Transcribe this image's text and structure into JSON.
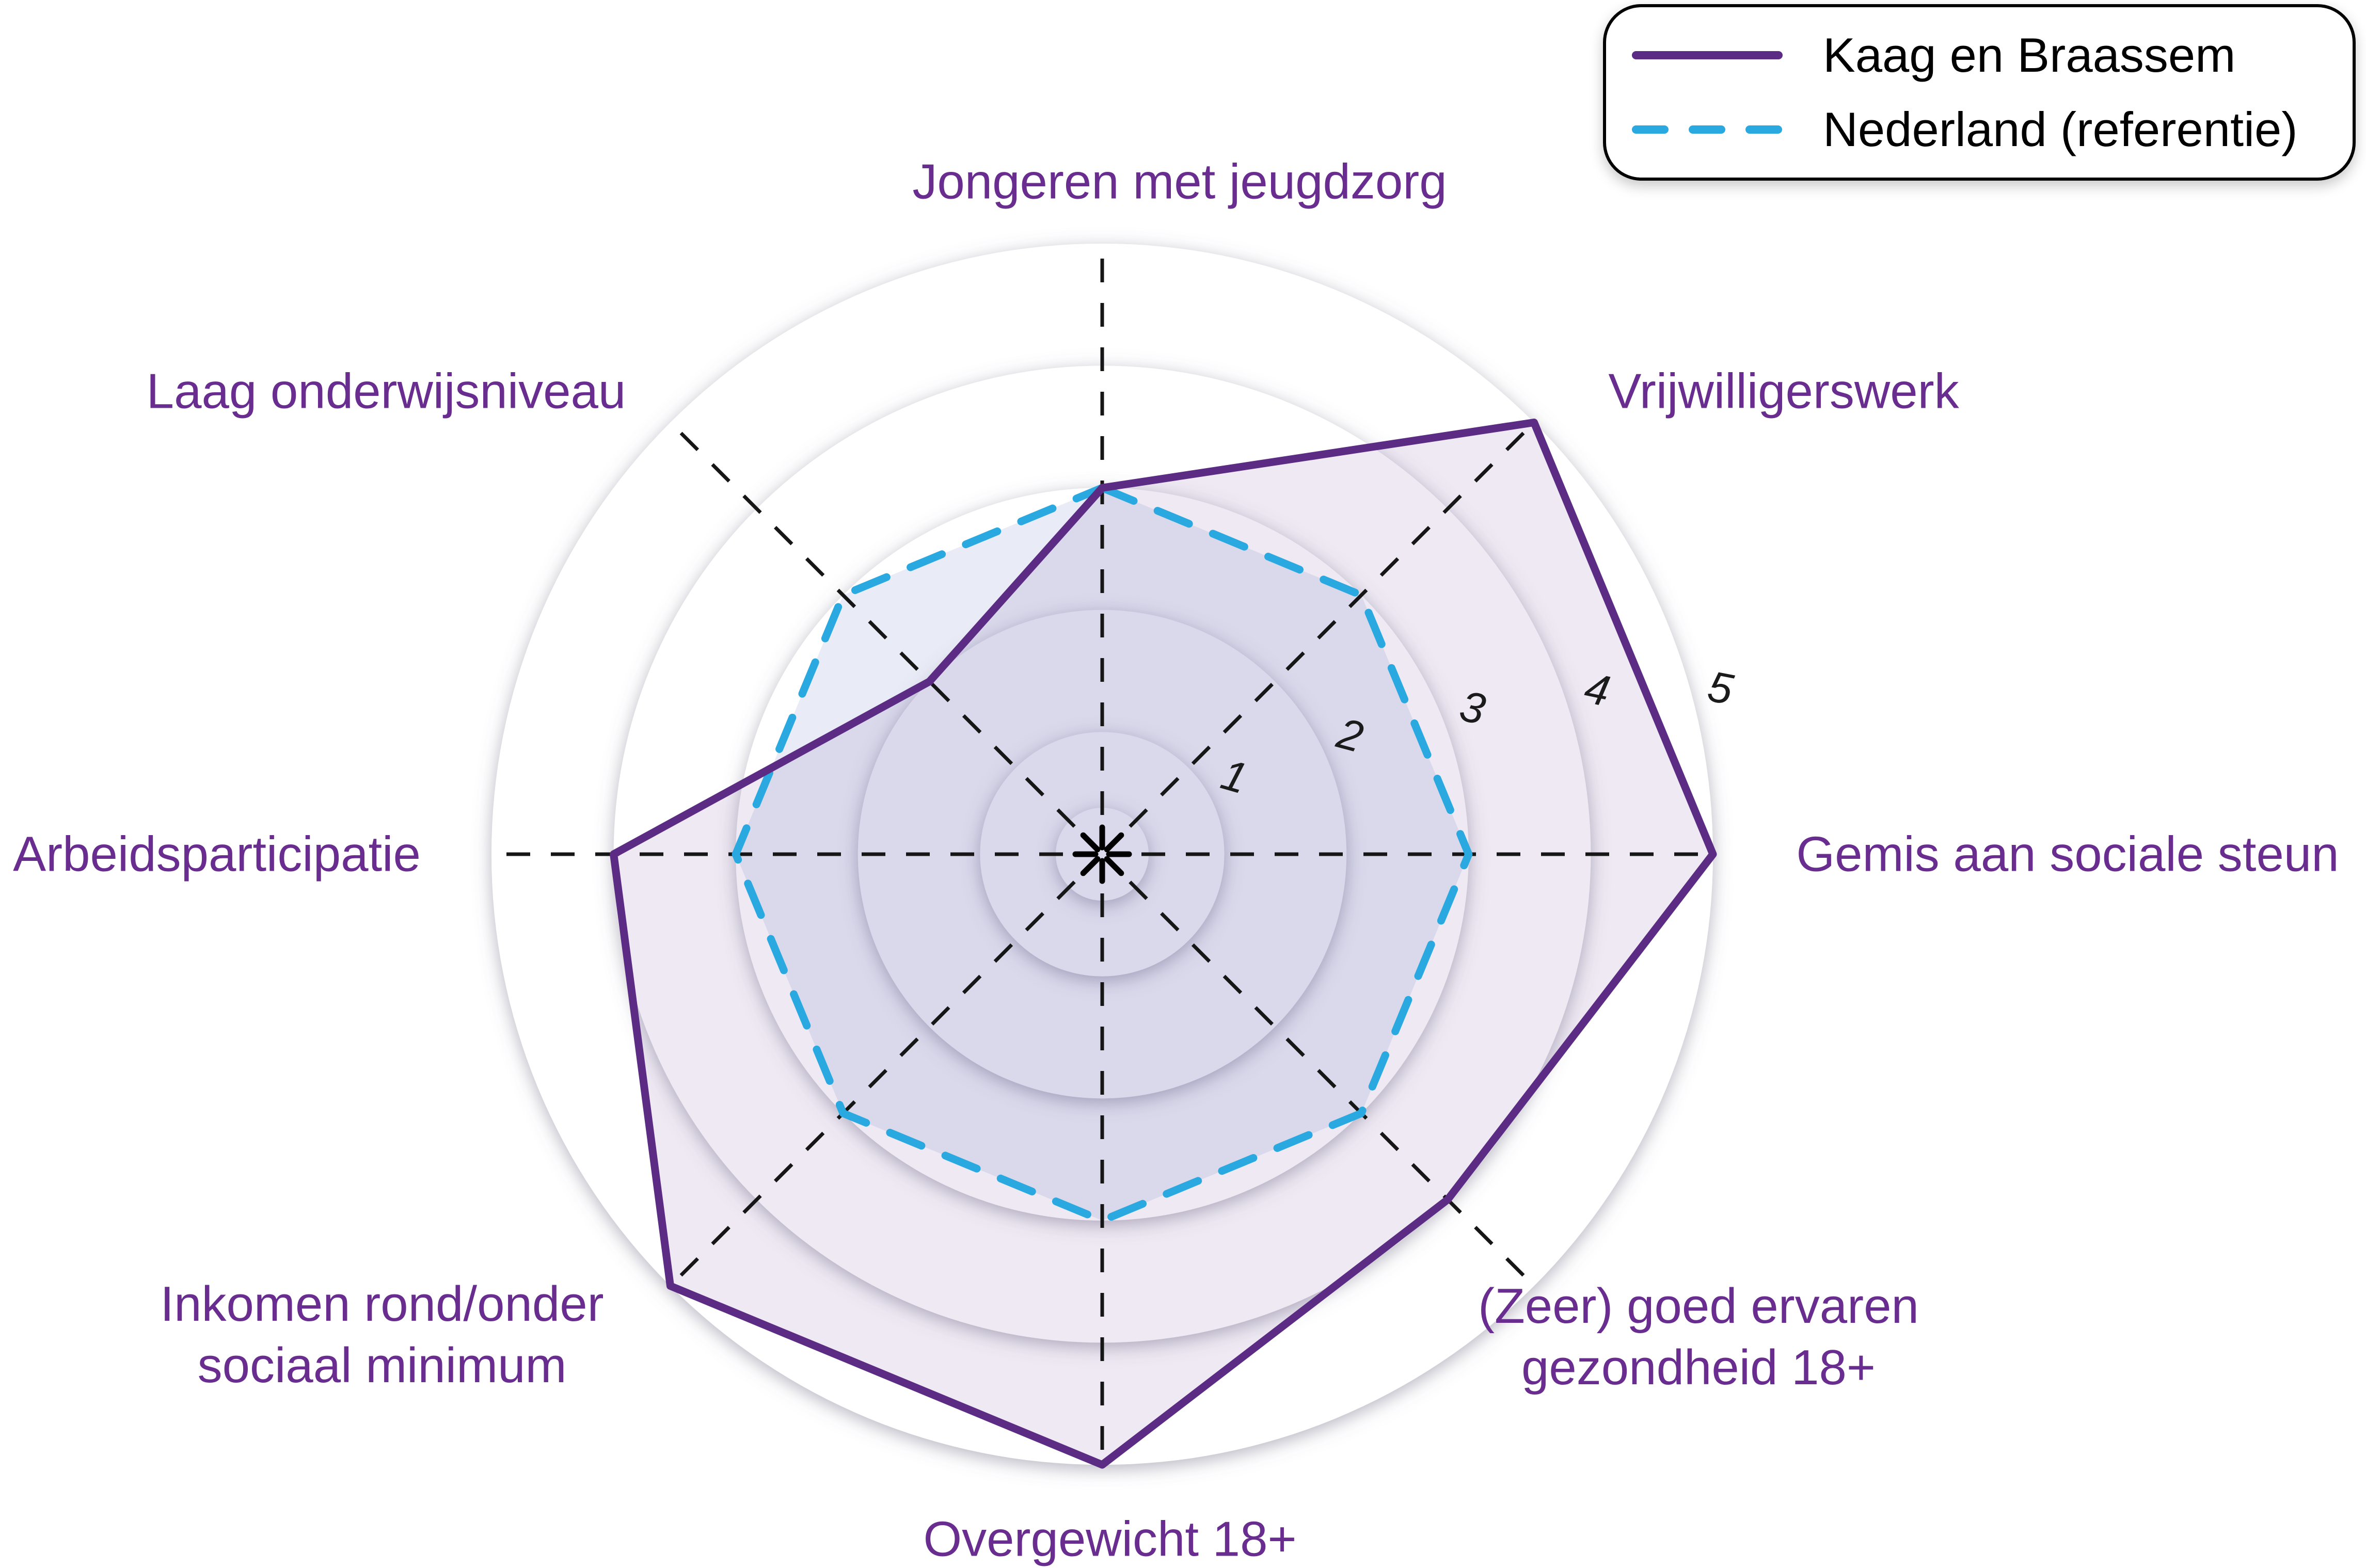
{
  "colors": {
    "background": "#ffffff",
    "municipality_line": "#5c2c85",
    "reference_line": "#2aa9e0",
    "municipality_fill": "rgba(92,44,133,0.10)",
    "reference_fill": "rgba(70,100,185,0.12)",
    "axis_label_text": "#692c8f",
    "axis_line": "#161616",
    "ring_fill": "#ffffff",
    "ring_number_text": "#1b1b1b",
    "legend_border": "#000000",
    "legend_text": "#000000"
  },
  "chart_data": {
    "type": "radar",
    "title": "",
    "categories": [
      "Jongeren met jeugdzorg",
      "Vrijwilligerswerk",
      "Gemis aan sociale steun",
      "(Zeer) goed ervaren gezondheid 18+",
      "Overgewicht 18+",
      "Inkomen rond/onder sociaal minimum",
      "Arbeidsparticipatie",
      "Laag onderwijsniveau"
    ],
    "axis_labels_display": [
      "Jongeren met jeugdzorg",
      "Vrijwilligerswerk",
      "Gemis aan sociale steun",
      "(Zeer) goed ervaren\ngezondheid 18+",
      "Overgewicht 18+",
      "Inkomen rond/onder\nsociaal minimum",
      "Arbeidsparticipatie",
      "Laag onderwijsniveau"
    ],
    "rings": [
      1,
      2,
      3,
      4,
      5
    ],
    "ring_labels": [
      "1",
      "2",
      "3",
      "4",
      "5"
    ],
    "rlim": [
      0,
      5
    ],
    "start_axis": "top",
    "direction": "clockwise",
    "grid_shape": "concentric-circles",
    "legend_position": "top-right",
    "series": [
      {
        "name": "Kaag en Braassem",
        "line_style": "solid",
        "color": "#5c2c85",
        "fill": "rgba(92,44,133,0.10)",
        "values": [
          3,
          5,
          5,
          4,
          5,
          5,
          4,
          2
        ]
      },
      {
        "name": "Nederland (referentie)",
        "line_style": "dashed",
        "color": "#2aa9e0",
        "fill": "rgba(70,100,185,0.12)",
        "values": [
          3,
          3,
          3,
          3,
          3,
          3,
          3,
          3
        ]
      }
    ]
  }
}
